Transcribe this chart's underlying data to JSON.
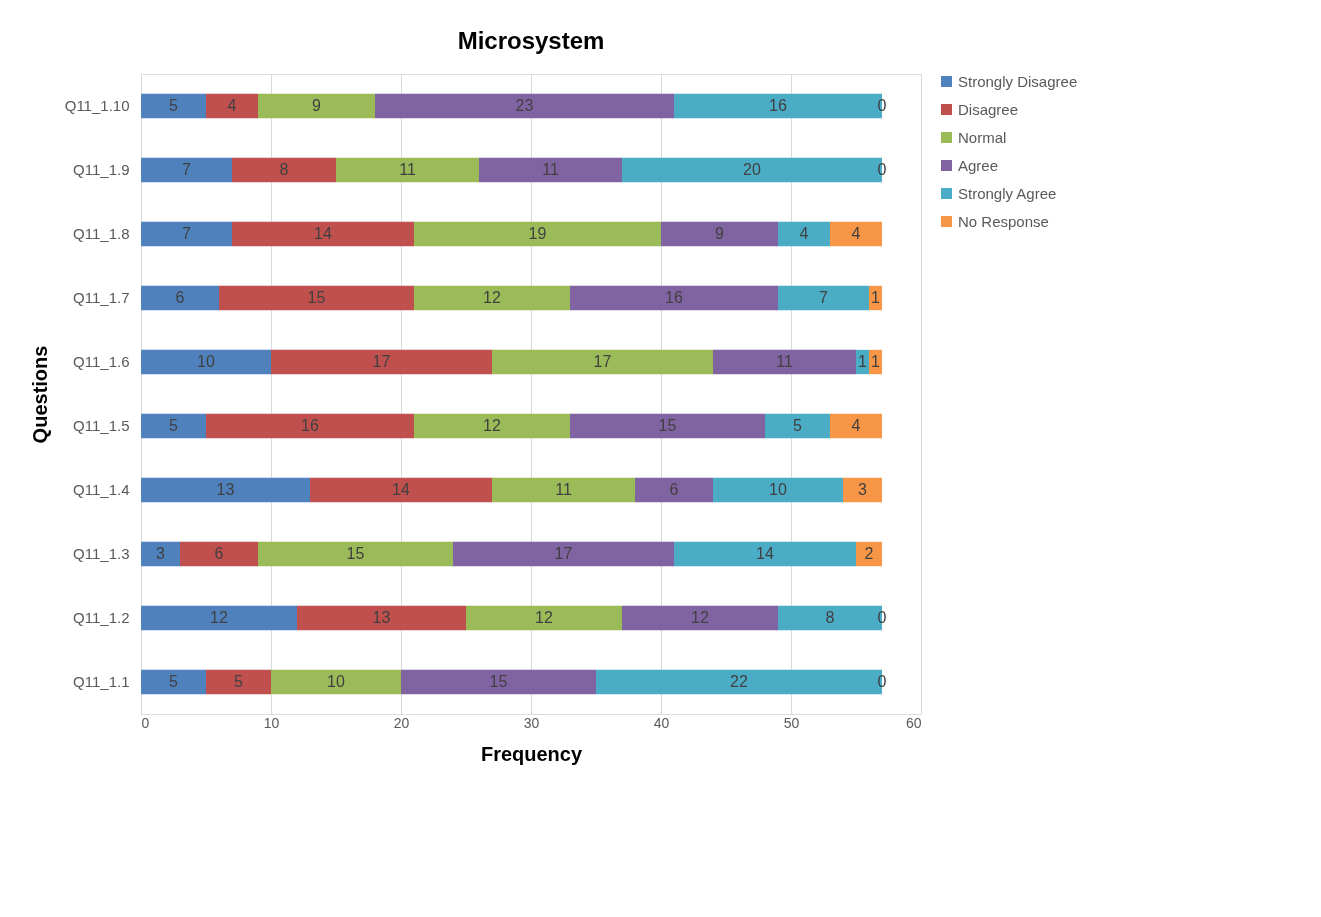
{
  "chart_data": {
    "type": "bar",
    "orientation": "horizontal",
    "stacked": true,
    "title": "Microsystem",
    "xlabel": "Frequency",
    "ylabel": "Questions",
    "categories": [
      "Q11_1.10",
      "Q11_1.9",
      "Q11_1.8",
      "Q11_1.7",
      "Q11_1.6",
      "Q11_1.5",
      "Q11_1.4",
      "Q11_1.3",
      "Q11_1.2",
      "Q11_1.1"
    ],
    "series": [
      {
        "name": "Strongly Disagree",
        "color": "#4f81bd",
        "values": [
          5,
          7,
          7,
          6,
          10,
          5,
          13,
          3,
          12,
          5
        ]
      },
      {
        "name": "Disagree",
        "color": "#c0504d",
        "values": [
          4,
          8,
          14,
          15,
          17,
          16,
          14,
          6,
          13,
          5
        ]
      },
      {
        "name": "Normal",
        "color": "#9bbb59",
        "values": [
          9,
          11,
          19,
          12,
          17,
          12,
          11,
          15,
          12,
          10
        ]
      },
      {
        "name": "Agree",
        "color": "#8064a2",
        "values": [
          23,
          11,
          9,
          16,
          11,
          15,
          6,
          17,
          12,
          15
        ]
      },
      {
        "name": "Strongly Agree",
        "color": "#4bacc6",
        "values": [
          16,
          20,
          4,
          7,
          1,
          5,
          10,
          14,
          8,
          22
        ]
      },
      {
        "name": "No Response",
        "color": "#f79646",
        "values": [
          0,
          0,
          4,
          1,
          1,
          4,
          3,
          2,
          0,
          0
        ]
      }
    ],
    "xlim": [
      0,
      60
    ],
    "xticks": [
      0,
      10,
      20,
      30,
      40,
      50,
      60
    ],
    "grid": "x",
    "legend": "right",
    "data_labels": true
  }
}
